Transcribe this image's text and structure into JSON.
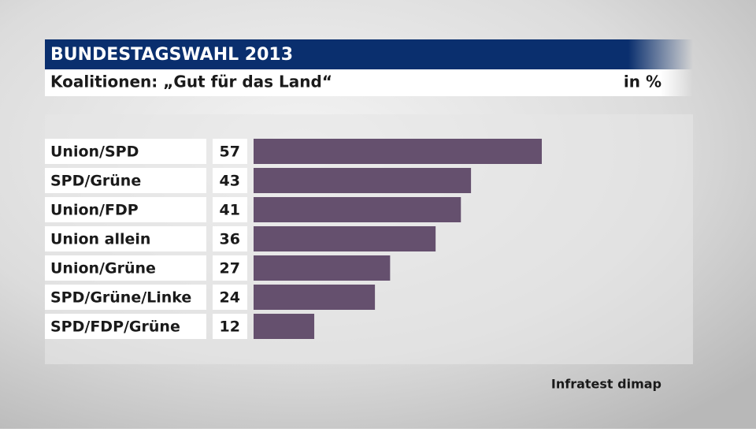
{
  "chart_data": {
    "type": "bar",
    "orientation": "horizontal",
    "title": "BUNDESTAGSWAHL 2013",
    "subtitle": "Koalitionen: „Gut für das Land“",
    "unit": "in %",
    "source": "Infratest dimap",
    "categories": [
      "Union/SPD",
      "SPD/Grüne",
      "Union/FDP",
      "Union allein",
      "Union/Grüne",
      "SPD/Grüne/Linke",
      "SPD/FDP/Grüne"
    ],
    "values": [
      57,
      43,
      41,
      36,
      27,
      24,
      12
    ],
    "color": "#65506e"
  }
}
